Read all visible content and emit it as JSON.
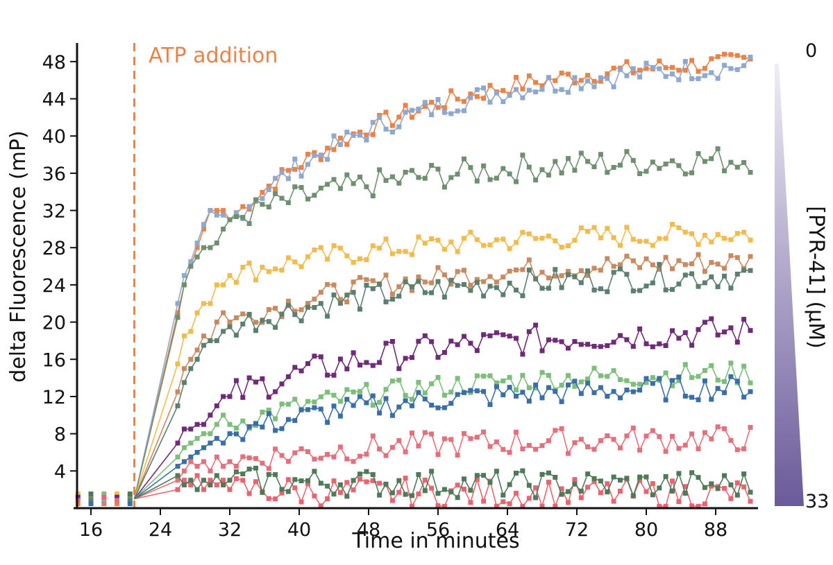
{
  "chart_data": {
    "type": "line",
    "xlabel": "Time in minutes",
    "ylabel": "delta Fluorescence (mP)",
    "xlim": [
      13.5,
      93
    ],
    "ylim": [
      0,
      50
    ],
    "xticks": [
      16,
      24,
      32,
      40,
      48,
      56,
      64,
      72,
      80,
      88
    ],
    "yticks": [
      4,
      8,
      12,
      16,
      20,
      24,
      28,
      32,
      36,
      40,
      44,
      48
    ],
    "grid": false,
    "annotation": {
      "text": "ATP addition",
      "x": 21,
      "color": "#e8844a"
    },
    "colorbar": {
      "label": "[PYR-41] (µM)",
      "top_label": "0",
      "bottom_label": "33",
      "color_light": "#efedf5",
      "color_dark": "#6a5a9a"
    },
    "baseline": {
      "x": [
        14.5,
        16,
        17.5,
        19,
        20.5
      ],
      "y": 1
    },
    "series": [
      {
        "color": "#e8844a",
        "x0": 26,
        "dx": 0.75,
        "end": 48,
        "noise": 1.0,
        "values": [
          21,
          24,
          26,
          28,
          30,
          32,
          32,
          32,
          31
        ]
      },
      {
        "color": "#8ea8cf",
        "x0": 26,
        "dx": 0.75,
        "end": 47.5,
        "noise": 1.2,
        "values": [
          22,
          25,
          26.5,
          28.5,
          30.5,
          32,
          31.5,
          31.5,
          31
        ]
      },
      {
        "color": "#6f8f70",
        "x0": 26,
        "dx": 0.75,
        "end": 37.5,
        "noise": 1.5,
        "values": [
          20.5,
          24,
          26,
          27,
          28,
          28,
          28.5,
          30,
          31
        ]
      },
      {
        "color": "#f2bb4e",
        "x0": 26,
        "dx": 0.75,
        "end": 29.5,
        "noise": 1.2,
        "values": [
          15.5,
          18.5,
          19,
          21,
          22,
          22,
          24,
          24,
          25
        ]
      },
      {
        "color": "#c98a60",
        "x0": 26,
        "dx": 0.75,
        "end": 26.5,
        "noise": 1.2,
        "values": [
          12.5,
          15,
          16,
          17,
          18.5,
          18,
          20,
          21,
          20
        ]
      },
      {
        "color": "#5c8070",
        "x0": 26,
        "dx": 0.75,
        "end": 25,
        "noise": 1.4,
        "values": [
          11,
          13.5,
          15,
          16,
          17.5,
          18,
          18,
          19,
          19.5
        ]
      },
      {
        "color": "#6f2a78",
        "x0": 26,
        "dx": 0.75,
        "end": 19,
        "noise": 1.6,
        "values": [
          7,
          8.5,
          8.5,
          9,
          9,
          10,
          11,
          12,
          12
        ]
      },
      {
        "color": "#7cbf7a",
        "x0": 26,
        "dx": 0.75,
        "end": 14.5,
        "noise": 1.2,
        "values": [
          5.5,
          6.5,
          7,
          7.5,
          8,
          8,
          9,
          10,
          9
        ]
      },
      {
        "color": "#3a6ea8",
        "x0": 26,
        "dx": 0.75,
        "end": 13,
        "noise": 1.3,
        "values": [
          4.5,
          5,
          5.5,
          6,
          6.5,
          7,
          7.5,
          7,
          8
        ]
      },
      {
        "color": "#e3707a",
        "x0": 26,
        "dx": 0.75,
        "end": 7.5,
        "noise": 1.4,
        "values": [
          3,
          4,
          5,
          4.5,
          5,
          4,
          5.5,
          4.5,
          5
        ]
      },
      {
        "color": "#e86470",
        "x0": 26,
        "dx": 0.75,
        "end": 1.5,
        "noise": 1.6,
        "values": [
          2,
          3,
          2.5,
          3.5,
          2,
          3,
          2.5,
          3,
          2
        ]
      },
      {
        "color": "#4f7a58",
        "x0": 26,
        "dx": 0.75,
        "end": 2.5,
        "noise": 1.5,
        "values": [
          3.5,
          2.5,
          3,
          2,
          3,
          2.5,
          3.5,
          2.5,
          3
        ]
      }
    ]
  }
}
